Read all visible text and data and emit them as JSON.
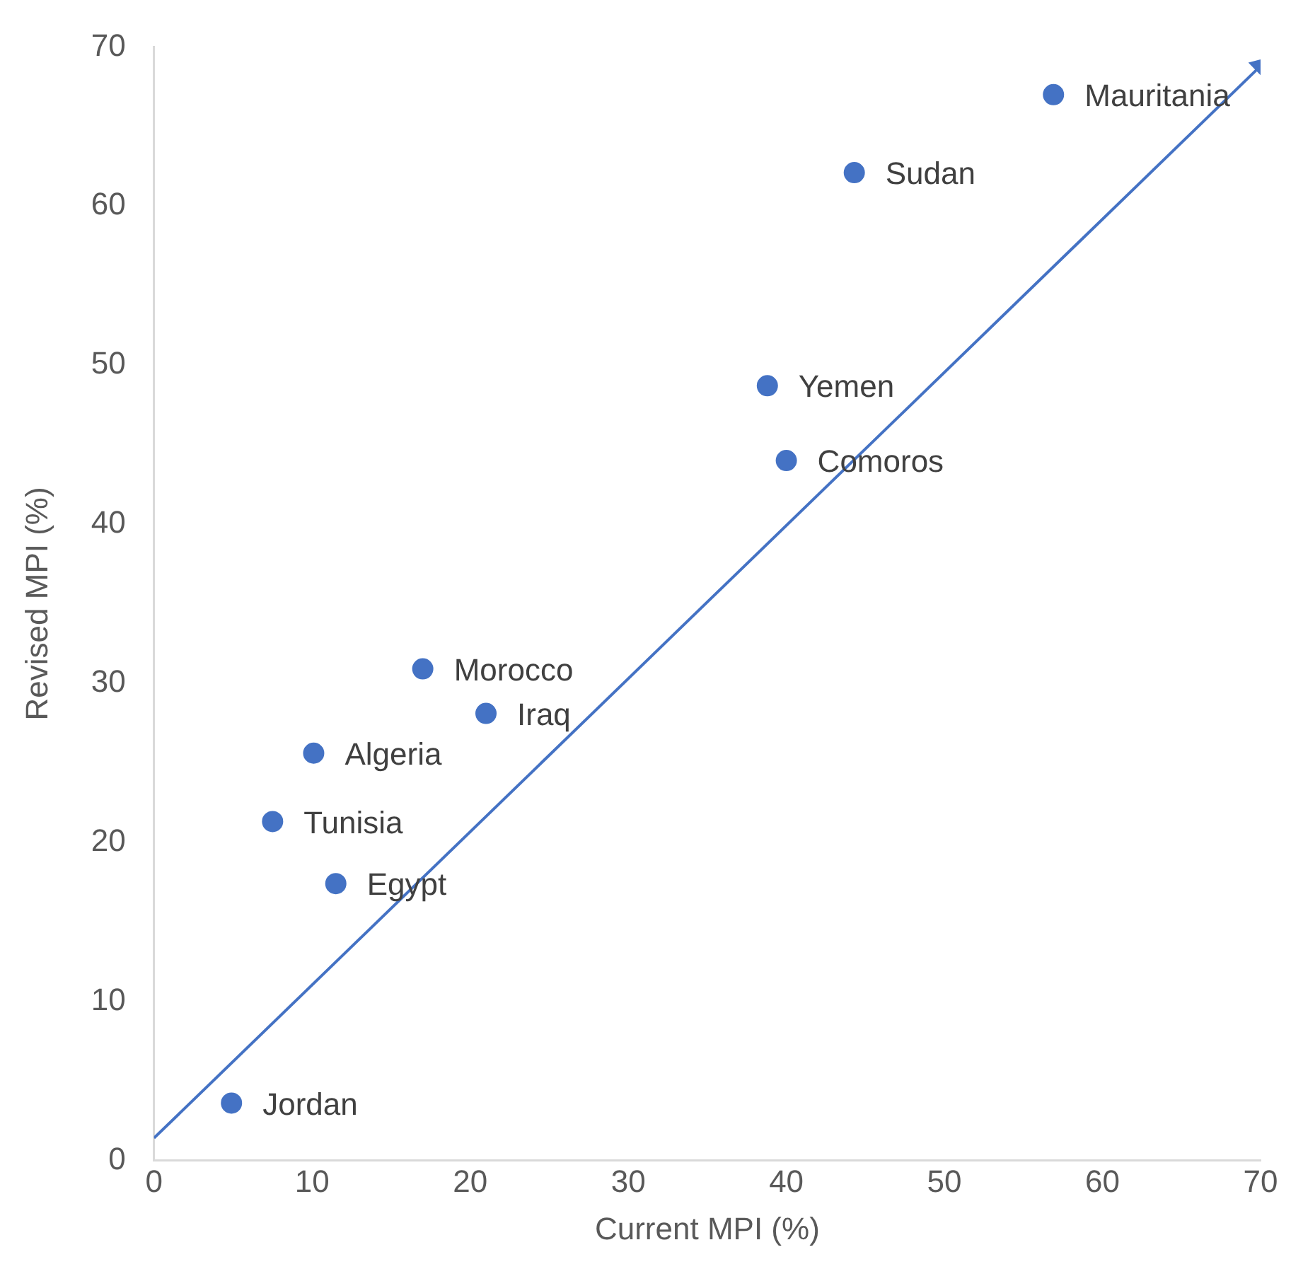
{
  "chart_data": {
    "type": "scatter",
    "xlabel": "Current MPI (%)",
    "ylabel": "Revised MPI (%)",
    "xlim": [
      0,
      70
    ],
    "ylim": [
      0,
      70
    ],
    "xticks": [
      0,
      10,
      20,
      30,
      40,
      50,
      60,
      70
    ],
    "yticks": [
      0,
      10,
      20,
      30,
      40,
      50,
      60,
      70
    ],
    "grid": false,
    "legend": false,
    "series": [
      {
        "marker": "circle",
        "color": "#4472c4",
        "x": [
          4.9,
          11.5,
          7.5,
          10.1,
          17.0,
          21.0,
          40.0,
          38.8,
          44.3,
          56.9
        ],
        "values": [
          3.6,
          17.4,
          21.3,
          25.6,
          30.9,
          28.1,
          44.0,
          48.7,
          62.1,
          67.0
        ]
      },
      {
        "type": "line",
        "marker": "triangle",
        "color": "#4472c4",
        "x": [
          0,
          70
        ],
        "values": [
          1.4,
          68.8
        ]
      }
    ],
    "annotations": [
      {
        "text": "Jordan",
        "x": 4.9,
        "y": 3.6
      },
      {
        "text": "Egypt",
        "x": 11.5,
        "y": 17.4
      },
      {
        "text": "Tunisia",
        "x": 7.5,
        "y": 21.3
      },
      {
        "text": "Algeria",
        "x": 10.1,
        "y": 25.6
      },
      {
        "text": "Morocco",
        "x": 17.0,
        "y": 30.9
      },
      {
        "text": "Iraq",
        "x": 21.0,
        "y": 28.1
      },
      {
        "text": "Comoros",
        "x": 40.0,
        "y": 44.0
      },
      {
        "text": "Yemen",
        "x": 38.8,
        "y": 48.7
      },
      {
        "text": "Sudan",
        "x": 44.3,
        "y": 62.1
      },
      {
        "text": "Mauritania",
        "x": 56.9,
        "y": 67.0
      }
    ]
  }
}
